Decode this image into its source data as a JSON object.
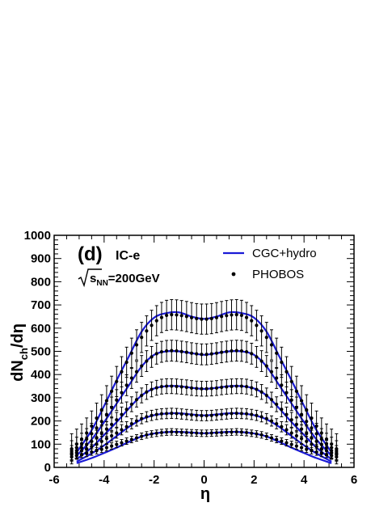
{
  "chart_data": {
    "type": "line",
    "panel_label": "(d)",
    "model_label": "IC-e",
    "energy_label": "√s_NN=200GeV",
    "energy_parts": {
      "root": "s",
      "sub": "NN",
      "rest": "=200GeV"
    },
    "xlabel": "η",
    "ylabel": {
      "main": "dN",
      "sub": "ch",
      "rest": "/dη"
    },
    "xlim": [
      -6,
      6
    ],
    "ylim": [
      0,
      1000
    ],
    "x_ticks": [
      -6,
      -4,
      -2,
      0,
      2,
      4,
      6
    ],
    "y_ticks": [
      0,
      100,
      200,
      300,
      400,
      500,
      600,
      700,
      800,
      900,
      1000
    ],
    "legend": {
      "position": "top-right",
      "items": [
        {
          "label": "CGC+hydro",
          "kind": "line",
          "color": "#1a1ad6"
        },
        {
          "label": "PHOBOS",
          "kind": "marker",
          "color": "#000000"
        }
      ]
    },
    "colors": {
      "model_line": "#1a1ad6",
      "data": "#000000"
    },
    "series": [
      {
        "curve": {
          "x": [
            -5.1,
            -4.5,
            -4.0,
            -3.5,
            -3.0,
            -2.5,
            -2.0,
            -1.5,
            -1.0,
            -0.5,
            0.0,
            0.5,
            1.0,
            1.5,
            2.0,
            2.5,
            3.0,
            3.5,
            4.0,
            4.5,
            5.1
          ],
          "y": [
            18,
            40,
            62,
            85,
            110,
            133,
            146,
            152,
            153,
            150,
            147,
            150,
            153,
            152,
            146,
            133,
            110,
            85,
            62,
            40,
            18
          ]
        },
        "data": {
          "x": [
            -5.3,
            -5.1,
            -4.9,
            -4.7,
            -4.5,
            -4.3,
            -4.1,
            -3.9,
            -3.7,
            -3.5,
            -3.3,
            -3.1,
            -2.9,
            -2.7,
            -2.5,
            -2.3,
            -2.1,
            -1.9,
            -1.7,
            -1.5,
            -1.3,
            -1.1,
            -0.9,
            -0.7,
            -0.5,
            -0.3,
            -0.1,
            0.1,
            0.3,
            0.5,
            0.7,
            0.9,
            1.1,
            1.3,
            1.5,
            1.7,
            1.9,
            2.1,
            2.3,
            2.5,
            2.7,
            2.9,
            3.1,
            3.3,
            3.5,
            3.7,
            3.9,
            4.1,
            4.3,
            4.5,
            4.7,
            4.9,
            5.1,
            5.3
          ],
          "y": [
            45,
            50,
            56,
            60,
            66,
            72,
            78,
            85,
            92,
            99,
            106,
            113,
            120,
            127,
            134,
            140,
            144,
            147,
            150,
            152,
            153,
            152,
            151,
            150,
            149,
            148,
            147,
            147,
            148,
            149,
            150,
            151,
            152,
            153,
            152,
            150,
            147,
            144,
            140,
            134,
            127,
            120,
            113,
            106,
            99,
            92,
            85,
            78,
            72,
            66,
            60,
            56,
            50,
            45
          ],
          "err": 14
        }
      },
      {
        "curve": {
          "x": [
            -5.1,
            -4.5,
            -4.0,
            -3.5,
            -3.0,
            -2.5,
            -2.0,
            -1.5,
            -1.0,
            -0.5,
            0.0,
            0.5,
            1.0,
            1.5,
            2.0,
            2.5,
            3.0,
            3.5,
            4.0,
            4.5,
            5.1
          ],
          "y": [
            25,
            60,
            95,
            135,
            175,
            207,
            225,
            232,
            233,
            228,
            224,
            228,
            233,
            232,
            225,
            207,
            175,
            135,
            95,
            60,
            25
          ]
        },
        "data": {
          "x": [
            -5.3,
            -5.1,
            -4.9,
            -4.7,
            -4.5,
            -4.3,
            -4.1,
            -3.9,
            -3.7,
            -3.5,
            -3.3,
            -3.1,
            -2.9,
            -2.7,
            -2.5,
            -2.3,
            -2.1,
            -1.9,
            -1.7,
            -1.5,
            -1.3,
            -1.1,
            -0.9,
            -0.7,
            -0.5,
            -0.3,
            -0.1,
            0.1,
            0.3,
            0.5,
            0.7,
            0.9,
            1.1,
            1.3,
            1.5,
            1.7,
            1.9,
            2.1,
            2.3,
            2.5,
            2.7,
            2.9,
            3.1,
            3.3,
            3.5,
            3.7,
            3.9,
            4.1,
            4.3,
            4.5,
            4.7,
            4.9,
            5.1,
            5.3
          ],
          "y": [
            55,
            62,
            72,
            80,
            90,
            100,
            112,
            124,
            136,
            148,
            162,
            175,
            188,
            200,
            210,
            218,
            224,
            228,
            231,
            232,
            233,
            232,
            230,
            228,
            226,
            224,
            223,
            223,
            224,
            226,
            228,
            230,
            232,
            233,
            232,
            231,
            228,
            224,
            218,
            210,
            200,
            188,
            175,
            162,
            148,
            136,
            124,
            112,
            100,
            90,
            80,
            72,
            62,
            55
          ],
          "err": 22
        }
      },
      {
        "curve": {
          "x": [
            -5.1,
            -4.5,
            -4.0,
            -3.5,
            -3.0,
            -2.5,
            -2.0,
            -1.5,
            -1.0,
            -0.5,
            0.0,
            0.5,
            1.0,
            1.5,
            2.0,
            2.5,
            3.0,
            3.5,
            4.0,
            4.5,
            5.1
          ],
          "y": [
            35,
            85,
            140,
            195,
            255,
            310,
            340,
            350,
            350,
            343,
            338,
            343,
            350,
            350,
            340,
            310,
            255,
            195,
            140,
            85,
            35
          ]
        },
        "data": {
          "x": [
            -5.3,
            -5.1,
            -4.9,
            -4.7,
            -4.5,
            -4.3,
            -4.1,
            -3.9,
            -3.7,
            -3.5,
            -3.3,
            -3.1,
            -2.9,
            -2.7,
            -2.5,
            -2.3,
            -2.1,
            -1.9,
            -1.7,
            -1.5,
            -1.3,
            -1.1,
            -0.9,
            -0.7,
            -0.5,
            -0.3,
            -0.1,
            0.1,
            0.3,
            0.5,
            0.7,
            0.9,
            1.1,
            1.3,
            1.5,
            1.7,
            1.9,
            2.1,
            2.3,
            2.5,
            2.7,
            2.9,
            3.1,
            3.3,
            3.5,
            3.7,
            3.9,
            4.1,
            4.3,
            4.5,
            4.7,
            4.9,
            5.1,
            5.3
          ],
          "y": [
            62,
            72,
            84,
            98,
            112,
            128,
            146,
            165,
            185,
            205,
            228,
            250,
            272,
            292,
            310,
            325,
            336,
            343,
            348,
            350,
            350,
            349,
            347,
            345,
            342,
            340,
            339,
            339,
            340,
            342,
            345,
            347,
            349,
            350,
            350,
            348,
            343,
            336,
            325,
            310,
            292,
            272,
            250,
            228,
            205,
            185,
            165,
            146,
            128,
            112,
            98,
            84,
            72,
            62
          ],
          "err": 32
        }
      },
      {
        "curve": {
          "x": [
            -5.1,
            -4.5,
            -4.0,
            -3.5,
            -3.0,
            -2.5,
            -2.0,
            -1.5,
            -1.0,
            -0.5,
            0.0,
            0.5,
            1.0,
            1.5,
            2.0,
            2.5,
            3.0,
            3.5,
            4.0,
            4.5,
            5.1
          ],
          "y": [
            50,
            120,
            195,
            275,
            355,
            435,
            485,
            500,
            500,
            492,
            485,
            492,
            500,
            500,
            485,
            435,
            355,
            275,
            195,
            120,
            50
          ]
        },
        "data": {
          "x": [
            -5.3,
            -5.1,
            -4.9,
            -4.7,
            -4.5,
            -4.3,
            -4.1,
            -3.9,
            -3.7,
            -3.5,
            -3.3,
            -3.1,
            -2.9,
            -2.7,
            -2.5,
            -2.3,
            -2.1,
            -1.9,
            -1.7,
            -1.5,
            -1.3,
            -1.1,
            -0.9,
            -0.7,
            -0.5,
            -0.3,
            -0.1,
            0.1,
            0.3,
            0.5,
            0.7,
            0.9,
            1.1,
            1.3,
            1.5,
            1.7,
            1.9,
            2.1,
            2.3,
            2.5,
            2.7,
            2.9,
            3.1,
            3.3,
            3.5,
            3.7,
            3.9,
            4.1,
            4.3,
            4.5,
            4.7,
            4.9,
            5.1,
            5.3
          ],
          "y": [
            70,
            85,
            102,
            122,
            145,
            170,
            198,
            228,
            258,
            290,
            322,
            354,
            385,
            412,
            437,
            458,
            476,
            490,
            498,
            502,
            503,
            502,
            499,
            496,
            492,
            489,
            487,
            487,
            489,
            492,
            496,
            499,
            502,
            503,
            502,
            498,
            490,
            476,
            458,
            437,
            412,
            385,
            354,
            322,
            290,
            258,
            228,
            198,
            170,
            145,
            122,
            102,
            85,
            70
          ],
          "err": 45
        }
      },
      {
        "curve": {
          "x": [
            -5.1,
            -4.5,
            -4.0,
            -3.5,
            -3.0,
            -2.5,
            -2.0,
            -1.5,
            -1.0,
            -0.5,
            0.0,
            0.5,
            1.0,
            1.5,
            2.0,
            2.5,
            3.0,
            3.5,
            4.0,
            4.5,
            5.1
          ],
          "y": [
            65,
            160,
            265,
            375,
            480,
            585,
            645,
            665,
            668,
            650,
            640,
            650,
            668,
            665,
            645,
            585,
            480,
            375,
            265,
            160,
            65
          ]
        },
        "data": {
          "x": [
            -5.3,
            -5.1,
            -4.9,
            -4.7,
            -4.5,
            -4.3,
            -4.1,
            -3.9,
            -3.7,
            -3.5,
            -3.3,
            -3.1,
            -2.9,
            -2.7,
            -2.5,
            -2.3,
            -2.1,
            -1.9,
            -1.7,
            -1.5,
            -1.3,
            -1.1,
            -0.9,
            -0.7,
            -0.5,
            -0.3,
            -0.1,
            0.1,
            0.3,
            0.5,
            0.7,
            0.9,
            1.1,
            1.3,
            1.5,
            1.7,
            1.9,
            2.1,
            2.3,
            2.5,
            2.7,
            2.9,
            3.1,
            3.3,
            3.5,
            3.7,
            3.9,
            4.1,
            4.3,
            4.5,
            4.7,
            4.9,
            5.1,
            5.3
          ],
          "y": [
            80,
            100,
            122,
            148,
            178,
            212,
            248,
            287,
            328,
            370,
            412,
            453,
            492,
            528,
            560,
            588,
            612,
            632,
            646,
            655,
            658,
            657,
            654,
            650,
            645,
            641,
            639,
            639,
            641,
            645,
            650,
            654,
            657,
            658,
            655,
            646,
            632,
            612,
            588,
            560,
            528,
            492,
            453,
            412,
            370,
            328,
            287,
            248,
            212,
            178,
            148,
            122,
            100,
            80
          ],
          "err": 65
        }
      }
    ]
  }
}
